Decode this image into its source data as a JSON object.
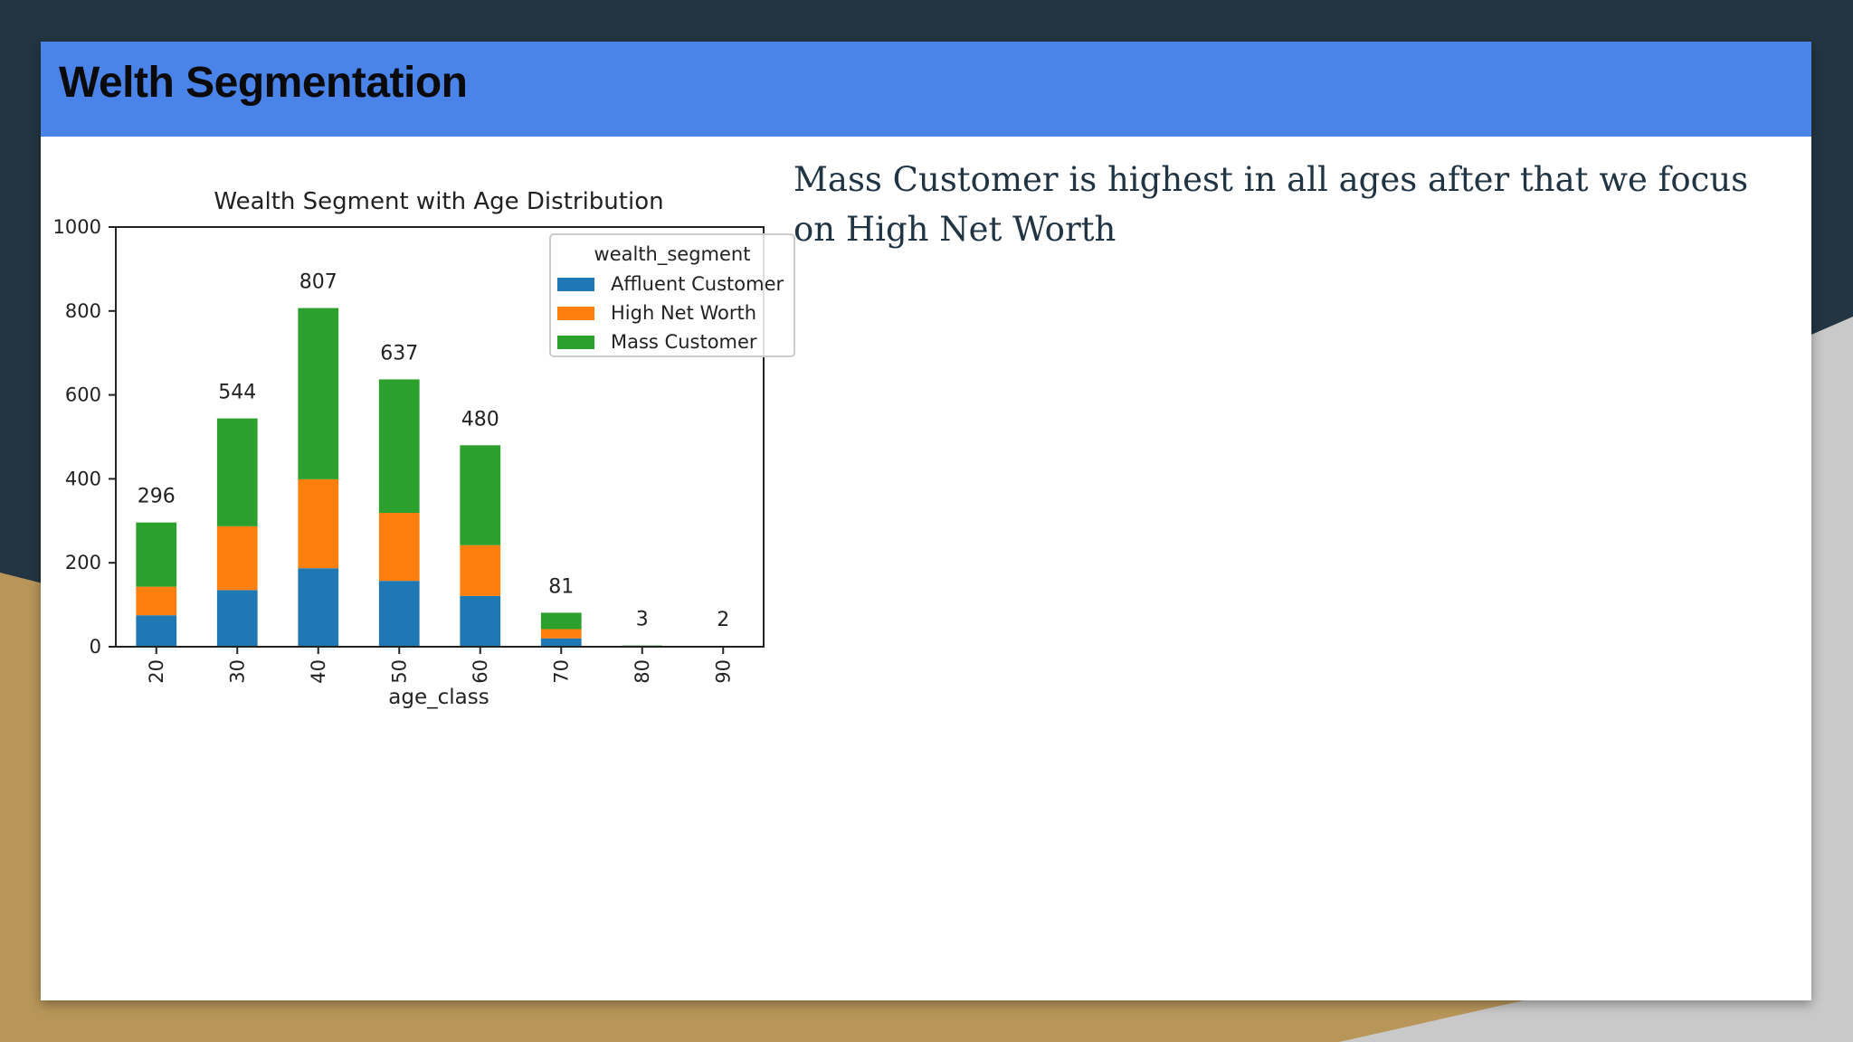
{
  "slide": {
    "title": "Welth Segmentation",
    "summary": "Mass Customer is highest in all ages after that we  focus on High Net Worth"
  },
  "colors": {
    "header_bar": "#4b84e8",
    "background_dark": "#233542",
    "accent_gold": "#b8965a"
  },
  "chart_data": {
    "type": "bar",
    "stacked": true,
    "title": "Wealth Segment with Age Distribution",
    "xlabel": "age_class",
    "ylabel": "",
    "categories": [
      "20",
      "30",
      "40",
      "50",
      "60",
      "70",
      "80",
      "90"
    ],
    "series": [
      {
        "name": "Affluent Customer",
        "color": "#1f77b4",
        "values": [
          75,
          135,
          187,
          157,
          121,
          20,
          1,
          0
        ]
      },
      {
        "name": "High Net Worth",
        "color": "#ff7f0e",
        "values": [
          68,
          152,
          212,
          162,
          121,
          22,
          0,
          0
        ]
      },
      {
        "name": "Mass Customer",
        "color": "#2ca02c",
        "values": [
          153,
          257,
          408,
          318,
          238,
          39,
          2,
          2
        ]
      }
    ],
    "totals": [
      296,
      544,
      807,
      637,
      480,
      81,
      3,
      2
    ],
    "ylim": [
      0,
      1000
    ],
    "yticks": [
      0,
      200,
      400,
      600,
      800,
      1000
    ],
    "legend_title": "wealth_segment",
    "legend_position": "top-right",
    "grid": false
  }
}
